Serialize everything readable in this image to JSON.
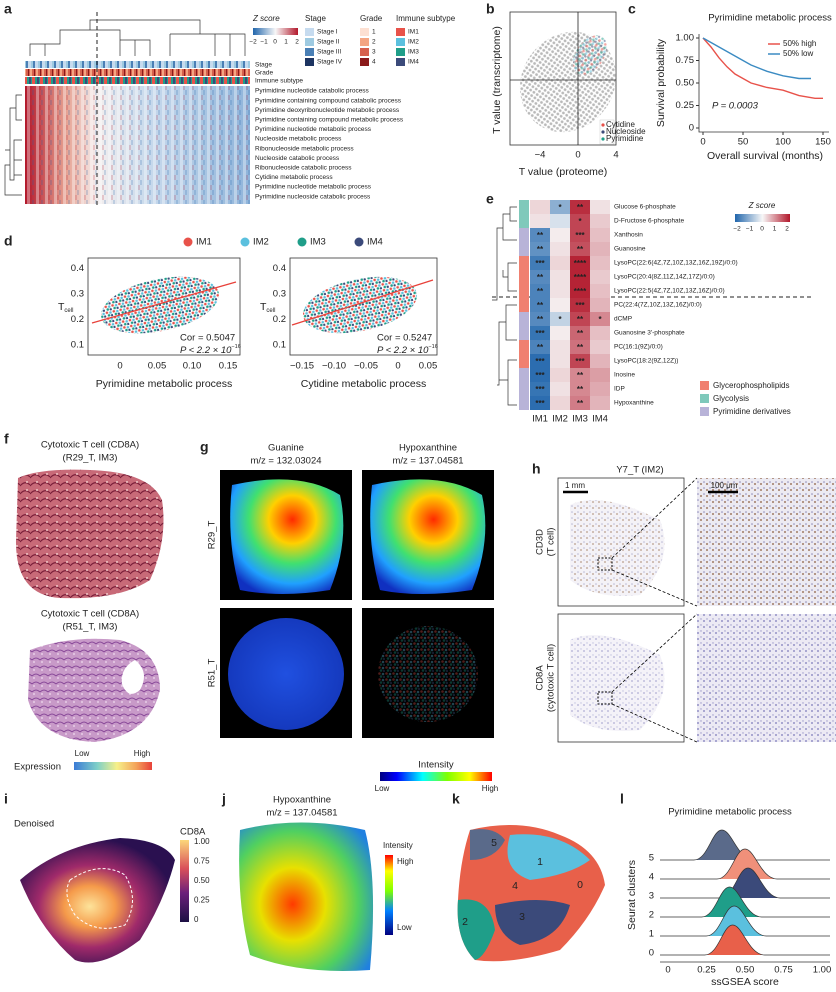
{
  "a": {
    "label": "a",
    "zscore": {
      "title": "Z score",
      "ticks": [
        "−2",
        "−1",
        "0",
        "1",
        "2"
      ]
    },
    "legends": [
      {
        "title": "Stage",
        "items": [
          {
            "name": "Stage I",
            "color": "#c6dbef"
          },
          {
            "name": "Stage II",
            "color": "#9ecae1"
          },
          {
            "name": "Stage III",
            "color": "#4a7fb5"
          },
          {
            "name": "Stage IV",
            "color": "#1d3461"
          }
        ]
      },
      {
        "title": "Grade",
        "items": [
          {
            "name": "1",
            "color": "#fde0d2"
          },
          {
            "name": "2",
            "color": "#f4a582"
          },
          {
            "name": "3",
            "color": "#d6604d"
          },
          {
            "name": "4",
            "color": "#8b1a1a"
          }
        ]
      },
      {
        "title": "Immune subtype",
        "items": [
          {
            "name": "IM1",
            "color": "#e8524a"
          },
          {
            "name": "IM2",
            "color": "#5bc0de"
          },
          {
            "name": "IM3",
            "color": "#1f9e89"
          },
          {
            "name": "IM4",
            "color": "#3b4a7a"
          }
        ]
      }
    ],
    "tracks": [
      "Stage",
      "Grade",
      "Immune subtype"
    ],
    "rows": [
      "Pyrimidine nucleotide catabolic process",
      "Pyrimidine containing compound catabolic process",
      "Pyrimidine deoxyribonucleotide metabolic process",
      "Pyrimidine containing compound metabolic process",
      "Pyrimidine nucleotide metabolic process",
      "Nucleoside metabolic process",
      "Ribonucleoside metabolic process",
      "Nucleoside catabolic process",
      "Ribonucleoside catabolic process",
      "Cytidine metabolic process",
      "Pyrimidine nucleotide metabolic process",
      "Pyrimidine nucleoside catabolic process"
    ]
  },
  "b": {
    "label": "b",
    "xlabel": "T value (proteome)",
    "ylabel": "T value (transcriptome)",
    "xticks": [
      "−4",
      "0",
      "4"
    ],
    "legend": [
      {
        "name": "Cytidine",
        "color": "#e8524a"
      },
      {
        "name": "Nucleoside",
        "color": "#3b4a7a"
      },
      {
        "name": "Pyrimidine",
        "color": "#1f9e89"
      }
    ]
  },
  "c": {
    "label": "c",
    "title": "Pyrimidine metabolic process",
    "ylabel": "Survival probability",
    "xlabel": "Overall survival (months)",
    "xlim": [
      0,
      150
    ],
    "ylim": [
      0,
      1
    ],
    "xticks": [
      0,
      50,
      100,
      150
    ],
    "yticks": [
      0,
      0.25,
      {
        "value": 0.5,
        "label": "0.50"
      },
      {
        "value": 0.75,
        "label": "0.75"
      },
      {
        "value": 1,
        "label": "1.00"
      }
    ],
    "series": [
      {
        "name": "50% high",
        "color": "#e8524a",
        "x": [
          0,
          10,
          20,
          30,
          40,
          50,
          60,
          80,
          100,
          120,
          140,
          150
        ],
        "values": [
          1,
          0.9,
          0.78,
          0.68,
          0.6,
          0.55,
          0.5,
          0.45,
          0.42,
          0.36,
          0.33,
          0.33
        ]
      },
      {
        "name": "50% low",
        "color": "#3b8bc2",
        "x": [
          0,
          10,
          20,
          30,
          40,
          50,
          60,
          80,
          100,
          120,
          135
        ],
        "values": [
          1,
          0.95,
          0.9,
          0.85,
          0.8,
          0.75,
          0.7,
          0.63,
          0.58,
          0.55,
          0.55
        ]
      }
    ],
    "annotation": "P = 0.0003"
  },
  "d": {
    "label": "d",
    "legend": [
      {
        "name": "IM1",
        "color": "#e8524a"
      },
      {
        "name": "IM2",
        "color": "#5bc0de"
      },
      {
        "name": "IM3",
        "color": "#1f9e89"
      },
      {
        "name": "IM4",
        "color": "#3b4a7a"
      }
    ],
    "plots": [
      {
        "ylabel": "T",
        "ylabel_sub": "cell",
        "yticks": [
          "0.1",
          "0.2",
          "0.3",
          "0.4"
        ],
        "xticks": [
          "0",
          "0.05",
          "0.10",
          "0.15"
        ],
        "xlabel": "Pyrimidine metabolic process",
        "cor": "Cor = 0.5047",
        "p": "P < 2.2 × 10",
        "p_exp": "−16"
      },
      {
        "ylabel": "T",
        "ylabel_sub": "cell",
        "yticks": [
          "0.1",
          "0.2",
          "0.3",
          "0.4"
        ],
        "xticks": [
          "−0.15",
          "−0.10",
          "−0.05",
          "0",
          "0.05"
        ],
        "xlabel": "Cytidine metabolic process",
        "cor": "Cor = 0.5247",
        "p": "P < 2.2 × 10",
        "p_exp": "−16"
      }
    ]
  },
  "e": {
    "label": "e",
    "columns": [
      "IM1",
      "IM2",
      "IM3",
      "IM4"
    ],
    "rows": [
      "Glucose 6-phosphate",
      "D-Fructose 6-phosphate",
      "Xanthosin",
      "Guanosine",
      "LysoPC(22:6(4Z,7Z,10Z,13Z,16Z,19Z)/0:0)",
      "LysoPC(20:4(8Z,11Z,14Z,17Z)/0:0)",
      "LysoPC(22:5(4Z,7Z,10Z,13Z,16Z)/0:0)",
      "PC(22:4(7Z,10Z,13Z,16Z)/0:0)",
      "dCMP",
      "Guanosine 3′-phosphate",
      "PC(16:1(9Z)/0:0)",
      "LysoPC(18:2(9Z,12Z))",
      "Inosine",
      "IDP",
      "Hypoxanthine"
    ],
    "zlim": [
      -2,
      2
    ],
    "zscores": [
      [
        0.3,
        -1.0,
        1.8,
        0.2
      ],
      [
        0.2,
        -0.3,
        1.6,
        0.4
      ],
      [
        -1.5,
        0.1,
        1.6,
        0.5
      ],
      [
        -1.4,
        0.2,
        1.5,
        0.6
      ],
      [
        -1.7,
        0.3,
        1.9,
        0.5
      ],
      [
        -1.5,
        0.2,
        1.9,
        0.4
      ],
      [
        -1.6,
        0.2,
        1.9,
        0.5
      ],
      [
        -1.6,
        0.1,
        1.8,
        0.6
      ],
      [
        -1.5,
        -0.5,
        1.6,
        1.0
      ],
      [
        -1.8,
        0.1,
        1.3,
        0.5
      ],
      [
        -1.6,
        0.2,
        1.2,
        0.4
      ],
      [
        -1.9,
        0.2,
        1.6,
        0.6
      ],
      [
        -1.9,
        0.3,
        1.0,
        0.8
      ],
      [
        -1.8,
        0.2,
        1.0,
        0.7
      ],
      [
        -1.9,
        0.3,
        1.1,
        0.6
      ]
    ],
    "stars": [
      [
        null,
        "*",
        "**",
        null
      ],
      [
        null,
        null,
        "*",
        null
      ],
      [
        "**",
        null,
        "***",
        null
      ],
      [
        "**",
        null,
        "**",
        null
      ],
      [
        "***",
        null,
        "****",
        null
      ],
      [
        "**",
        null,
        "****",
        null
      ],
      [
        "**",
        null,
        "****",
        null
      ],
      [
        "**",
        null,
        "***",
        null
      ],
      [
        "**",
        "*",
        "**",
        "*"
      ],
      [
        "***",
        null,
        "**",
        null
      ],
      [
        "**",
        null,
        "**",
        null
      ],
      [
        "***",
        null,
        "***",
        null
      ],
      [
        "***",
        null,
        "**",
        null
      ],
      [
        "***",
        null,
        "**",
        null
      ],
      [
        "***",
        null,
        "**",
        null
      ]
    ],
    "row_colors": [
      "#7fc9bb",
      "#7fc9bb",
      "#b8b3d8",
      "#b8b3d8",
      "#f08070",
      "#f08070",
      "#f08070",
      "#f08070",
      "#b8b3d8",
      "#b8b3d8",
      "#f08070",
      "#f08070",
      "#b8b3d8",
      "#b8b3d8",
      "#b8b3d8"
    ],
    "zscore_legend": {
      "title": "Z score",
      "ticks": [
        "−2",
        "−1",
        "0",
        "1",
        "2"
      ]
    },
    "categories": [
      {
        "name": "Glycerophospholipids",
        "color": "#f08070"
      },
      {
        "name": "Glycolysis",
        "color": "#7fc9bb"
      },
      {
        "name": "Pyrimidine derivatives",
        "color": "#b8b3d8"
      }
    ]
  },
  "f": {
    "label": "f",
    "sections": [
      {
        "title": "Cytotoxic T cell (CD8A)",
        "sample": "(R29_T, IM3)"
      },
      {
        "title": "Cytotoxic T cell (CD8A)",
        "sample": "(R51_T, IM3)"
      }
    ],
    "legend": {
      "title": "Expression",
      "low": "Low",
      "high": "High"
    }
  },
  "g": {
    "label": "g",
    "columns": [
      {
        "name": "Guanine",
        "mz": "m/z = 132.03024"
      },
      {
        "name": "Hypoxanthine",
        "mz": "m/z = 137.04581"
      }
    ],
    "rows": [
      "R29_T",
      "R51_T"
    ],
    "legend": {
      "title": "Intensity",
      "low": "Low",
      "high": "High"
    }
  },
  "h": {
    "label": "h",
    "sample": "Y7_T (IM2)",
    "scale_left": "1 mm",
    "scale_right": "100 μm",
    "rows": [
      {
        "marker": "CD3D",
        "cell": "(T cell)"
      },
      {
        "marker": "CD8A",
        "cell": "(cytotoxic T cell)"
      }
    ]
  },
  "i": {
    "label": "i",
    "title": "Denoised",
    "legend_title": "CD8A",
    "ticks": [
      "1.00",
      "0.75",
      "0.50",
      "0.25",
      "0"
    ]
  },
  "j": {
    "label": "j",
    "title": "Hypoxanthine",
    "mz": "m/z = 137.04581",
    "legend": {
      "title": "Intensity",
      "high": "High",
      "low": "Low"
    }
  },
  "k": {
    "label": "k",
    "clusters": [
      "0",
      "1",
      "2",
      "3",
      "4",
      "5"
    ]
  },
  "l": {
    "label": "l",
    "title": "Pyrimidine metabolic process",
    "ylabel": "Seurat clusters",
    "xlabel": "ssGSEA score",
    "xticks": [
      "0",
      "0.25",
      "0.50",
      "0.75",
      "1.00"
    ],
    "clusters": [
      "0",
      "1",
      "2",
      "3",
      "4",
      "5"
    ],
    "peaks": [
      0.42,
      0.43,
      0.4,
      0.52,
      0.5,
      0.35
    ],
    "colors": [
      "#e8604a",
      "#5bc0de",
      "#1f9e89",
      "#3b4a7a",
      "#f0907a",
      "#5a6a8a"
    ]
  }
}
